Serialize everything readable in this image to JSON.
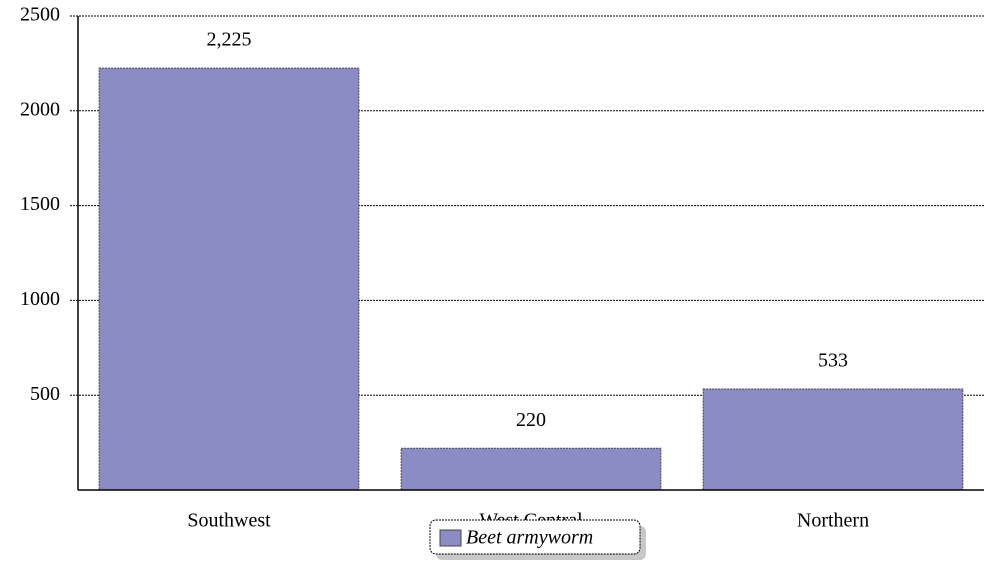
{
  "chart_data": {
    "type": "bar",
    "categories": [
      "Southwest",
      "West Central",
      "Northern"
    ],
    "series": [
      {
        "name": "Beet armyworm",
        "color": "#8c8cc4",
        "values": [
          2225,
          220,
          533
        ],
        "value_labels": [
          "2,225",
          "220",
          "533"
        ]
      }
    ],
    "ylim": [
      0,
      2500
    ],
    "yticks": [
      500,
      1000,
      1500,
      2000,
      2500
    ],
    "grid": true,
    "legend": "bottom"
  }
}
